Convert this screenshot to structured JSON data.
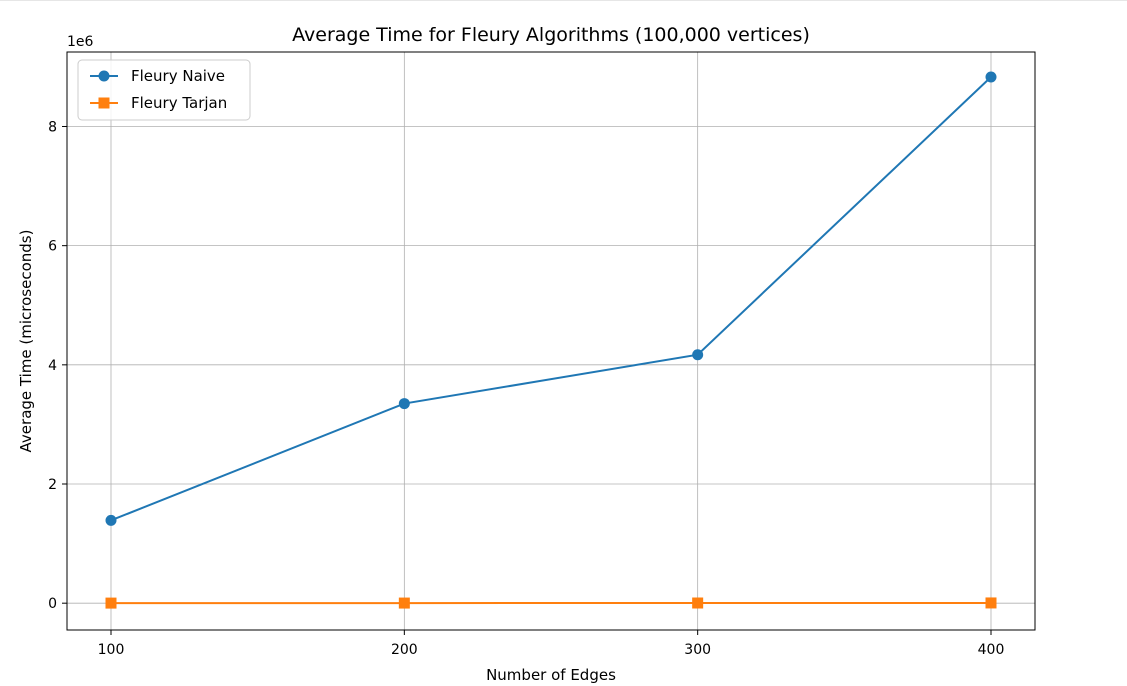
{
  "chart_data": {
    "type": "line",
    "title": "Average Time for Fleury Algorithms (100,000 vertices)",
    "xlabel": "Number of Edges",
    "ylabel": "Average Time (microseconds)",
    "y_offset_label": "1e6",
    "x": [
      100,
      200,
      300,
      400
    ],
    "x_ticks": [
      100,
      200,
      300,
      400
    ],
    "x_tick_labels": [
      "100",
      "200",
      "300",
      "400"
    ],
    "xlim": [
      85,
      415
    ],
    "y_ticks": [
      0,
      2000000,
      4000000,
      6000000,
      8000000
    ],
    "y_tick_labels": [
      "0",
      "2",
      "4",
      "6",
      "8"
    ],
    "ylim": [
      -450000,
      9250000
    ],
    "grid": true,
    "legend_position": "upper-left",
    "series": [
      {
        "name": "Fleury Naive",
        "color": "#1f77b4",
        "marker": "circle",
        "values": [
          1390000,
          3350000,
          4170000,
          8830000
        ]
      },
      {
        "name": "Fleury Tarjan",
        "color": "#ff7f0e",
        "marker": "square",
        "values": [
          1500,
          2000,
          3000,
          4000
        ]
      }
    ]
  }
}
